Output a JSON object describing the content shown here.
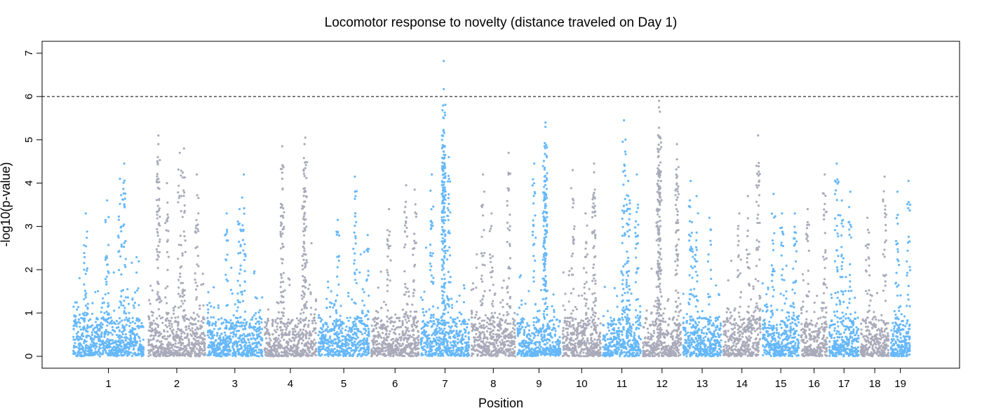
{
  "chart_data": {
    "type": "scatter",
    "title": "Locomotor response to novelty (distance traveled on Day 1)",
    "xlabel": "Position",
    "ylabel": "-log10(p-value)",
    "ylim": [
      0,
      7
    ],
    "yticks": [
      0,
      1,
      2,
      3,
      4,
      5,
      6,
      7
    ],
    "threshold": 6,
    "grid": false,
    "colors": {
      "odd": "#66b8fa",
      "even": "#a9abba",
      "threshold": "#000000"
    },
    "chromosomes": [
      {
        "label": "1",
        "start": 0.0,
        "end": 0.083,
        "peaks": [
          [
            0.06,
            4.45
          ],
          [
            0.055,
            4.1
          ],
          [
            0.04,
            3.6
          ],
          [
            0.015,
            3.3
          ]
        ]
      },
      {
        "label": "2",
        "start": 0.088,
        "end": 0.155,
        "peaks": [
          [
            0.1,
            5.1
          ],
          [
            0.1,
            4.9
          ],
          [
            0.13,
            4.8
          ],
          [
            0.125,
            4.7
          ],
          [
            0.11,
            4.0
          ],
          [
            0.145,
            4.2
          ]
        ]
      },
      {
        "label": "3",
        "start": 0.157,
        "end": 0.222,
        "peaks": [
          [
            0.2,
            4.2
          ],
          [
            0.195,
            3.4
          ],
          [
            0.18,
            3.3
          ]
        ]
      },
      {
        "label": "4",
        "start": 0.224,
        "end": 0.285,
        "peaks": [
          [
            0.245,
            4.85
          ],
          [
            0.272,
            5.05
          ],
          [
            0.271,
            4.9
          ],
          [
            0.27,
            4.3
          ],
          [
            0.245,
            4.1
          ]
        ]
      },
      {
        "label": "5",
        "start": 0.287,
        "end": 0.347,
        "peaks": [
          [
            0.33,
            4.15
          ],
          [
            0.31,
            3.15
          ],
          [
            0.345,
            2.8
          ]
        ]
      },
      {
        "label": "6",
        "start": 0.349,
        "end": 0.405,
        "peaks": [
          [
            0.39,
            3.95
          ],
          [
            0.37,
            3.4
          ],
          [
            0.4,
            3.85
          ]
        ]
      },
      {
        "label": "7",
        "start": 0.407,
        "end": 0.464,
        "peaks": [
          [
            0.434,
            6.82
          ],
          [
            0.434,
            6.17
          ],
          [
            0.434,
            5.5
          ],
          [
            0.434,
            5.2
          ],
          [
            0.433,
            4.85
          ],
          [
            0.44,
            4.6
          ],
          [
            0.42,
            4.2
          ]
        ]
      },
      {
        "label": "8",
        "start": 0.466,
        "end": 0.518,
        "peaks": [
          [
            0.51,
            4.7
          ],
          [
            0.48,
            4.2
          ],
          [
            0.49,
            3.3
          ]
        ]
      },
      {
        "label": "9",
        "start": 0.52,
        "end": 0.571,
        "peaks": [
          [
            0.553,
            5.4
          ],
          [
            0.553,
            5.3
          ],
          [
            0.552,
            4.85
          ],
          [
            0.54,
            4.45
          ],
          [
            0.552,
            4.15
          ]
        ]
      },
      {
        "label": "10",
        "start": 0.573,
        "end": 0.618,
        "peaks": [
          [
            0.585,
            4.3
          ],
          [
            0.61,
            4.45
          ],
          [
            0.61,
            4.25
          ],
          [
            0.6,
            3.3
          ]
        ]
      },
      {
        "label": "11",
        "start": 0.62,
        "end": 0.665,
        "peaks": [
          [
            0.645,
            5.45
          ],
          [
            0.65,
            4.05
          ],
          [
            0.66,
            4.2
          ],
          [
            0.65,
            3.7
          ]
        ]
      },
      {
        "label": "12",
        "start": 0.667,
        "end": 0.712,
        "peaks": [
          [
            0.686,
            5.9
          ],
          [
            0.686,
            5.75
          ],
          [
            0.687,
            5.65
          ],
          [
            0.685,
            4.6
          ],
          [
            0.707,
            4.9
          ],
          [
            0.707,
            4.55
          ],
          [
            0.686,
            4.3
          ]
        ]
      },
      {
        "label": "13",
        "start": 0.714,
        "end": 0.759,
        "peaks": [
          [
            0.723,
            4.05
          ],
          [
            0.73,
            3.7
          ],
          [
            0.745,
            3.2
          ]
        ]
      },
      {
        "label": "14",
        "start": 0.761,
        "end": 0.805,
        "peaks": [
          [
            0.802,
            5.1
          ],
          [
            0.79,
            3.7
          ],
          [
            0.78,
            3.3
          ]
        ]
      },
      {
        "label": "15",
        "start": 0.807,
        "end": 0.85,
        "peaks": [
          [
            0.82,
            3.75
          ],
          [
            0.83,
            3.3
          ],
          [
            0.845,
            3.3
          ]
        ]
      },
      {
        "label": "16",
        "start": 0.852,
        "end": 0.883,
        "peaks": [
          [
            0.88,
            4.2
          ],
          [
            0.86,
            3.4
          ]
        ]
      },
      {
        "label": "17",
        "start": 0.885,
        "end": 0.92,
        "peaks": [
          [
            0.894,
            4.45
          ],
          [
            0.91,
            3.8
          ],
          [
            0.9,
            3.6
          ]
        ]
      },
      {
        "label": "18",
        "start": 0.922,
        "end": 0.955,
        "peaks": [
          [
            0.95,
            4.15
          ],
          [
            0.93,
            3.2
          ]
        ]
      },
      {
        "label": "19",
        "start": 0.957,
        "end": 0.98,
        "peaks": [
          [
            0.978,
            4.05
          ],
          [
            0.965,
            3.8
          ]
        ]
      }
    ]
  }
}
